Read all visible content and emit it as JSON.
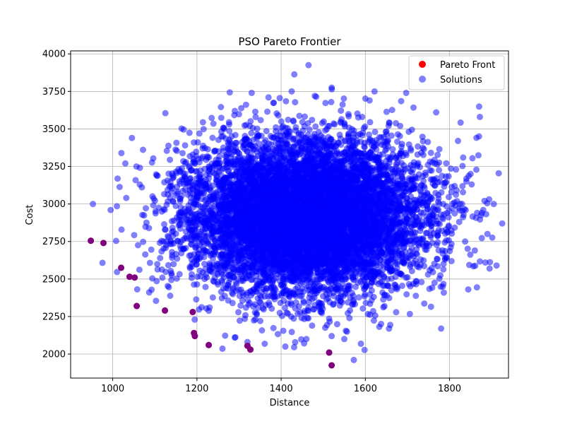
{
  "chart_data": {
    "type": "scatter",
    "title": "PSO Pareto Frontier",
    "xlabel": "Distance",
    "ylabel": "Cost",
    "xlim": [
      900,
      1940
    ],
    "ylim": [
      1840,
      4020
    ],
    "xticks": [
      1000,
      1200,
      1400,
      1600,
      1800
    ],
    "yticks": [
      2000,
      2250,
      2500,
      2750,
      3000,
      3250,
      3500,
      3750,
      4000
    ],
    "grid": true,
    "legend_position": "top-right",
    "colors": {
      "pareto": "#ff0000",
      "solutions": "#0000ff",
      "solutions_alpha": 0.5
    },
    "series": [
      {
        "name": "Pareto Front",
        "points": [
          [
            948,
            2755
          ],
          [
            978,
            2740
          ],
          [
            1020,
            2575
          ],
          [
            1040,
            2515
          ],
          [
            1052,
            2510
          ],
          [
            1057,
            2320
          ],
          [
            1124,
            2290
          ],
          [
            1190,
            2280
          ],
          [
            1193,
            2140
          ],
          [
            1195,
            2120
          ],
          [
            1228,
            2060
          ],
          [
            1320,
            2055
          ],
          [
            1327,
            2030
          ],
          [
            1514,
            2010
          ],
          [
            1520,
            1925
          ]
        ]
      },
      {
        "name": "Solutions",
        "cloud": {
          "center": [
            1460,
            2920
          ],
          "sd": [
            140,
            260
          ],
          "count": 9000,
          "xrange": [
            950,
            1925
          ],
          "yrange": [
            1925,
            3925
          ]
        },
        "points": [
          [
            1465,
            3925
          ],
          [
            1520,
            3775
          ],
          [
            1425,
            3750
          ],
          [
            1330,
            3740
          ],
          [
            1697,
            3740
          ],
          [
            1480,
            3720
          ],
          [
            1370,
            3710
          ],
          [
            1610,
            3690
          ],
          [
            1290,
            3620
          ],
          [
            1125,
            3605
          ],
          [
            1872,
            3580
          ],
          [
            1030,
            3270
          ],
          [
            953,
            3000
          ],
          [
            1010,
            2985
          ],
          [
            995,
            2960
          ],
          [
            1905,
            3000
          ],
          [
            1925,
            2870
          ],
          [
            1890,
            2800
          ],
          [
            1880,
            2960
          ],
          [
            1885,
            2610
          ],
          [
            1895,
            2570
          ],
          [
            1870,
            3450
          ],
          [
            1820,
            3420
          ],
          [
            1850,
            3200
          ],
          [
            1840,
            3150
          ],
          [
            1860,
            2690
          ],
          [
            1780,
            2170
          ],
          [
            1320,
            2080
          ],
          [
            1410,
            2050
          ],
          [
            1460,
            2100
          ],
          [
            1520,
            2120
          ],
          [
            1550,
            2100
          ],
          [
            1290,
            2110
          ]
        ]
      }
    ]
  }
}
